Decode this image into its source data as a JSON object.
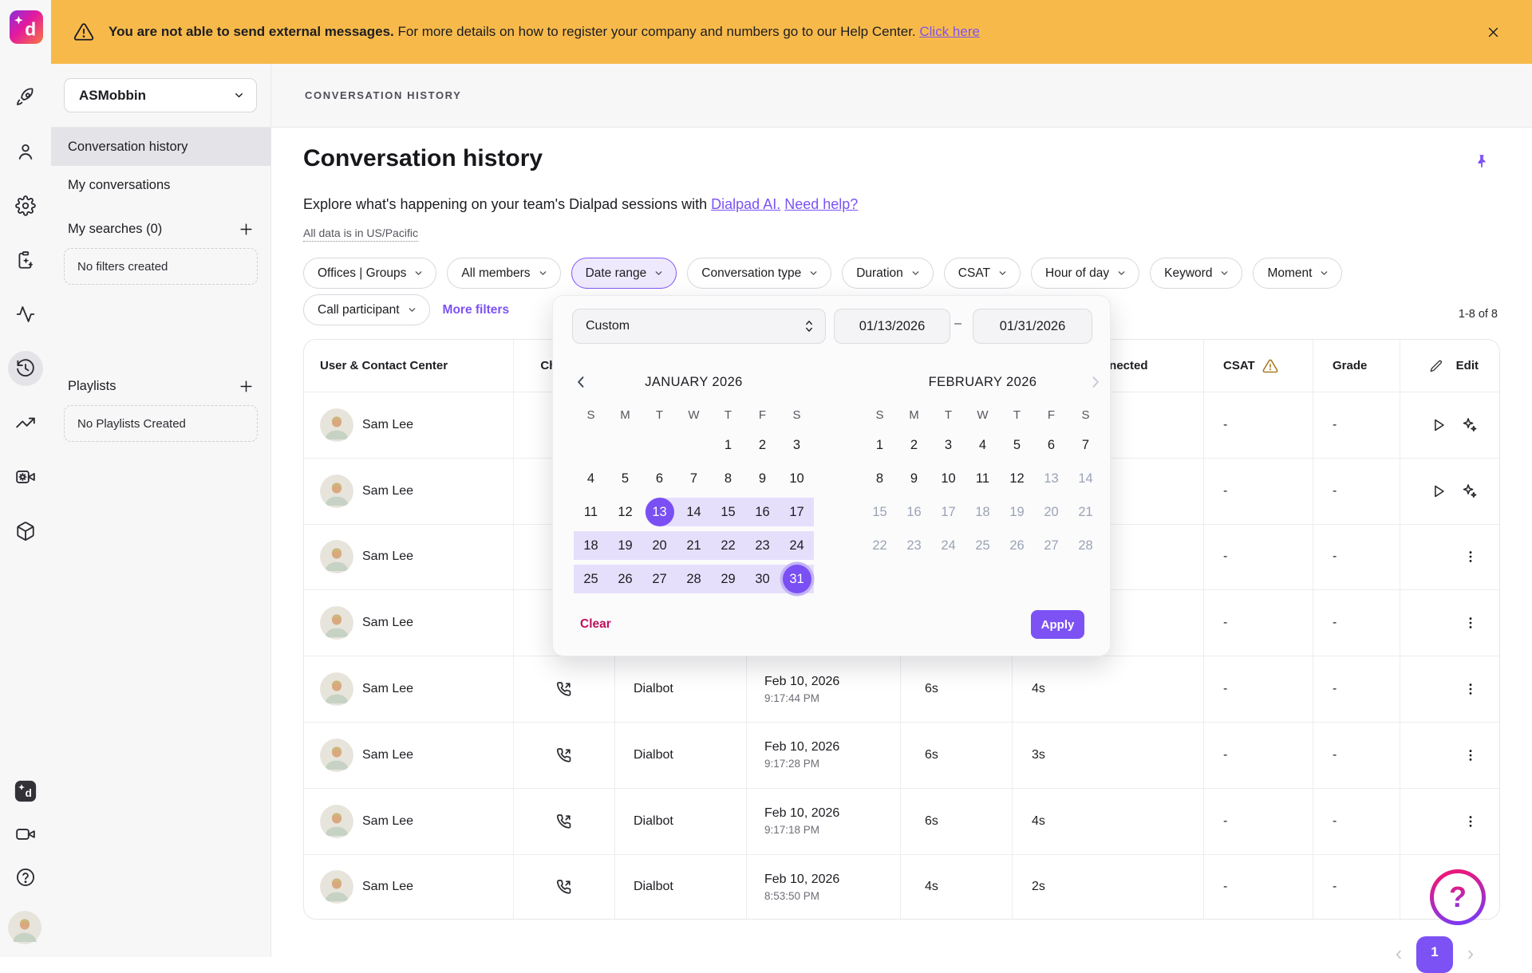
{
  "banner": {
    "icon": "warning-triangle-icon",
    "bold": "You are not able to send external messages.",
    "text": " For more details on how to register your company and numbers go to our Help Center. ",
    "link": "Click here",
    "close_icon": "close-icon"
  },
  "rail": {
    "top": [
      {
        "name": "rocket-icon",
        "selected": false
      },
      {
        "name": "person-icon",
        "selected": false
      },
      {
        "name": "gear-icon",
        "selected": false
      },
      {
        "name": "clipboard-sparkle-icon",
        "selected": false
      },
      {
        "name": "pulse-icon",
        "selected": false
      },
      {
        "name": "history-clock-icon",
        "selected": true
      },
      {
        "name": "trending-up-icon",
        "selected": false
      },
      {
        "name": "video-gear-icon",
        "selected": false
      },
      {
        "name": "cube-icon",
        "selected": false
      }
    ],
    "bottom": [
      {
        "name": "dialpad-badge-icon"
      },
      {
        "name": "video-camera-icon"
      },
      {
        "name": "question-circle-icon"
      }
    ]
  },
  "sidebar": {
    "workspace": "ASMobbin",
    "items": [
      {
        "label": "Conversation history",
        "selected": true
      },
      {
        "label": "My conversations",
        "selected": false
      }
    ],
    "searches_header": "My searches (0)",
    "searches_empty": "No filters created",
    "playlists_header": "Playlists",
    "playlists_empty": "No Playlists Created"
  },
  "header": {
    "breadcrumb": "CONVERSATION HISTORY",
    "title": "Conversation history",
    "desc_pre": "Explore what's happening on your team's Dialpad sessions with ",
    "desc_link1": "Dialpad AI.",
    "desc_mid": " ",
    "desc_link2": "Need help?",
    "tz_note": "All data is in US/Pacific"
  },
  "filters": {
    "row1": [
      {
        "label": "Offices | Groups",
        "active": false
      },
      {
        "label": "All members",
        "active": false
      },
      {
        "label": "Date range",
        "active": true
      },
      {
        "label": "Conversation type",
        "active": false
      },
      {
        "label": "Duration",
        "active": false
      },
      {
        "label": "CSAT",
        "active": false
      },
      {
        "label": "Hour of day",
        "active": false
      },
      {
        "label": "Keyword",
        "active": false
      },
      {
        "label": "Moment",
        "active": false
      }
    ],
    "row2": [
      {
        "label": "Call participant",
        "active": false
      }
    ],
    "more_filters": "More filters"
  },
  "counter": "1-8 of 8",
  "datepicker": {
    "preset": "Custom",
    "from": "01/13/2026",
    "separator": "–",
    "to": "01/31/2026",
    "dow": [
      "S",
      "M",
      "T",
      "W",
      "T",
      "F",
      "S"
    ],
    "months": [
      {
        "title": "JANUARY 2026",
        "prev_chevron": true,
        "next_chevron": false,
        "weeks": [
          [
            "",
            "",
            "",
            "",
            "1",
            "2",
            "3"
          ],
          [
            "4",
            "5",
            "6",
            "7",
            "8",
            "9",
            "10"
          ],
          [
            "11",
            "12",
            {
              "v": "13",
              "s": "sel start in"
            },
            {
              "v": "14",
              "s": "in"
            },
            {
              "v": "15",
              "s": "in"
            },
            {
              "v": "16",
              "s": "in"
            },
            {
              "v": "17",
              "s": "in"
            }
          ],
          [
            {
              "v": "18",
              "s": "in"
            },
            {
              "v": "19",
              "s": "in"
            },
            {
              "v": "20",
              "s": "in"
            },
            {
              "v": "21",
              "s": "in"
            },
            {
              "v": "22",
              "s": "in"
            },
            {
              "v": "23",
              "s": "in"
            },
            {
              "v": "24",
              "s": "in"
            }
          ],
          [
            {
              "v": "25",
              "s": "in"
            },
            {
              "v": "26",
              "s": "in"
            },
            {
              "v": "27",
              "s": "in"
            },
            {
              "v": "28",
              "s": "in"
            },
            {
              "v": "29",
              "s": "in"
            },
            {
              "v": "30",
              "s": "in"
            },
            {
              "v": "31",
              "s": "sel ring in"
            }
          ]
        ]
      },
      {
        "title": "FEBRUARY 2026",
        "prev_chevron": false,
        "next_chevron": "disabled",
        "weeks": [
          [
            "1",
            "2",
            "3",
            "4",
            "5",
            "6",
            "7"
          ],
          [
            "8",
            "9",
            "10",
            "11",
            "12",
            {
              "v": "13",
              "s": "dis"
            },
            {
              "v": "14",
              "s": "dis"
            }
          ],
          [
            {
              "v": "15",
              "s": "dis"
            },
            {
              "v": "16",
              "s": "dis"
            },
            {
              "v": "17",
              "s": "dis"
            },
            {
              "v": "18",
              "s": "dis"
            },
            {
              "v": "19",
              "s": "dis"
            },
            {
              "v": "20",
              "s": "dis"
            },
            {
              "v": "21",
              "s": "dis"
            }
          ],
          [
            {
              "v": "22",
              "s": "dis"
            },
            {
              "v": "23",
              "s": "dis"
            },
            {
              "v": "24",
              "s": "dis"
            },
            {
              "v": "25",
              "s": "dis"
            },
            {
              "v": "26",
              "s": "dis"
            },
            {
              "v": "27",
              "s": "dis"
            },
            {
              "v": "28",
              "s": "dis"
            }
          ]
        ]
      }
    ],
    "clear": "Clear",
    "apply": "Apply"
  },
  "table": {
    "headers": [
      "User & Contact Center",
      "Channel",
      "",
      "",
      "",
      "Connected",
      "CSAT",
      "Grade",
      "Edit"
    ],
    "csat_warning_icon": "warning-triangle-icon",
    "edit_icon": "pencil-icon",
    "rows": [
      {
        "name": "Sam Lee",
        "channel": false,
        "contact": "",
        "date": "",
        "time": "",
        "duration": "",
        "connected": "",
        "csat": "-",
        "grade": "-",
        "actions": "media"
      },
      {
        "name": "Sam Lee",
        "channel": false,
        "contact": "",
        "date": "",
        "time": "",
        "duration": "",
        "connected": "",
        "csat": "-",
        "grade": "-",
        "actions": "media"
      },
      {
        "name": "Sam Lee",
        "channel": false,
        "contact": "",
        "date": "",
        "time": "",
        "duration": "",
        "connected": "",
        "csat": "-",
        "grade": "-",
        "actions": "menu"
      },
      {
        "name": "Sam Lee",
        "channel": false,
        "contact": "",
        "date": "",
        "time": "",
        "duration": "",
        "connected": "",
        "csat": "-",
        "grade": "-",
        "actions": "menu"
      },
      {
        "name": "Sam Lee",
        "channel": true,
        "contact": "Dialbot",
        "date": "Feb 10, 2026",
        "time": "9:17:44 PM",
        "duration": "6s",
        "connected": "4s",
        "csat": "-",
        "grade": "-",
        "actions": "menu"
      },
      {
        "name": "Sam Lee",
        "channel": true,
        "contact": "Dialbot",
        "date": "Feb 10, 2026",
        "time": "9:17:28 PM",
        "duration": "6s",
        "connected": "3s",
        "csat": "-",
        "grade": "-",
        "actions": "menu"
      },
      {
        "name": "Sam Lee",
        "channel": true,
        "contact": "Dialbot",
        "date": "Feb 10, 2026",
        "time": "9:17:18 PM",
        "duration": "6s",
        "connected": "4s",
        "csat": "-",
        "grade": "-",
        "actions": "menu"
      },
      {
        "name": "Sam Lee",
        "channel": true,
        "contact": "Dialbot",
        "date": "Feb 10, 2026",
        "time": "8:53:50 PM",
        "duration": "4s",
        "connected": "2s",
        "csat": "-",
        "grade": "-",
        "actions": "menu"
      }
    ]
  },
  "pagination": {
    "page": "1"
  },
  "colors": {
    "accent_purple": "#7C52F5",
    "range_lavender": "#E6DFFB",
    "banner_amber": "#F7BA4A",
    "clear_crimson": "#C0105E",
    "csat_warning": "#A87B23"
  }
}
